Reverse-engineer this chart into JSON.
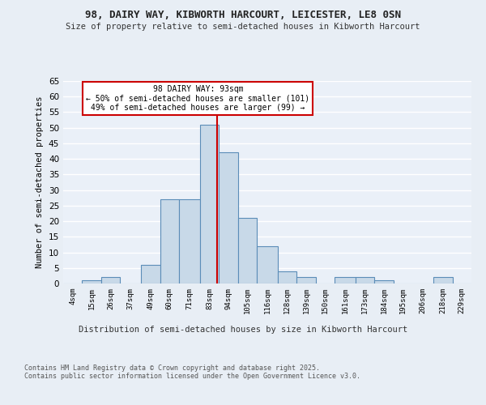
{
  "title1": "98, DAIRY WAY, KIBWORTH HARCOURT, LEICESTER, LE8 0SN",
  "title2": "Size of property relative to semi-detached houses in Kibworth Harcourt",
  "xlabel": "Distribution of semi-detached houses by size in Kibworth Harcourt",
  "ylabel": "Number of semi-detached properties",
  "footnote": "Contains HM Land Registry data © Crown copyright and database right 2025.\nContains public sector information licensed under the Open Government Licence v3.0.",
  "annotation_title": "98 DAIRY WAY: 93sqm",
  "annotation_line1": "← 50% of semi-detached houses are smaller (101)",
  "annotation_line2": "49% of semi-detached houses are larger (99) →",
  "bin_labels": [
    "4sqm",
    "15sqm",
    "26sqm",
    "37sqm",
    "49sqm",
    "60sqm",
    "71sqm",
    "83sqm",
    "94sqm",
    "105sqm",
    "116sqm",
    "128sqm",
    "139sqm",
    "150sqm",
    "161sqm",
    "173sqm",
    "184sqm",
    "195sqm",
    "206sqm",
    "218sqm",
    "229sqm"
  ],
  "bar_values": [
    0,
    1,
    2,
    0,
    6,
    27,
    27,
    51,
    42,
    21,
    12,
    4,
    2,
    0,
    2,
    2,
    1,
    0,
    0,
    2,
    0
  ],
  "bar_color": "#c8d9e8",
  "bar_edge_color": "#5b8db8",
  "property_line_x": 93,
  "bin_edges": [
    4,
    15,
    26,
    37,
    49,
    60,
    71,
    83,
    94,
    105,
    116,
    128,
    139,
    150,
    161,
    173,
    184,
    195,
    206,
    218,
    229,
    240
  ],
  "ylim": [
    0,
    65
  ],
  "yticks": [
    0,
    5,
    10,
    15,
    20,
    25,
    30,
    35,
    40,
    45,
    50,
    55,
    60,
    65
  ],
  "background_color": "#e8eef5",
  "plot_bg_color": "#eaf0f8",
  "grid_color": "#ffffff",
  "annotation_box_color": "#ffffff",
  "annotation_box_edge": "#cc0000",
  "red_line_color": "#cc0000"
}
